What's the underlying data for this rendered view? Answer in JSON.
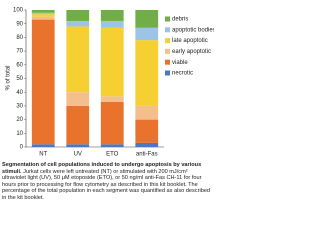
{
  "chart_data": {
    "type": "stacked_bar",
    "ylabel": "% of total",
    "categories": [
      "NT",
      "UV",
      "ETO",
      "anti-Fas"
    ],
    "series": [
      {
        "name": "necrotic",
        "color": "#4a78c2",
        "values": [
          2,
          2,
          2,
          3
        ]
      },
      {
        "name": "viable",
        "color": "#e9732c",
        "values": [
          91,
          28,
          31,
          17
        ]
      },
      {
        "name": "early apoptotic",
        "color": "#f4bf8c",
        "values": [
          2,
          10,
          4,
          10
        ]
      },
      {
        "name": "late apoptotic",
        "color": "#f6cf33",
        "values": [
          2,
          48,
          50,
          48
        ]
      },
      {
        "name": "apoptotic bodies",
        "color": "#9dc3e6",
        "values": [
          1,
          4,
          5,
          9
        ]
      },
      {
        "name": "debris",
        "color": "#72ae48",
        "values": [
          2,
          8,
          8,
          13
        ]
      }
    ],
    "ylim": [
      0,
      100
    ],
    "yticks": [
      0,
      10,
      20,
      30,
      40,
      50,
      60,
      70,
      80,
      90,
      100
    ],
    "caption_title": "Segmentation of cell populations induced to undergo apoptosis by various stimuli.",
    "caption_text": "Jurkat cells were left untreated (NT) or stimulated with 200 mJ/cm² ultraviolet light (UV), 50 μM etoposide (ETO), or 50 ng/ml anti-Fas CH-11 for four hours prior to processing for flow cytometry as described in this kit booklet. The percentage of the total population in each segment was quantified as also described in the kit booklet."
  }
}
